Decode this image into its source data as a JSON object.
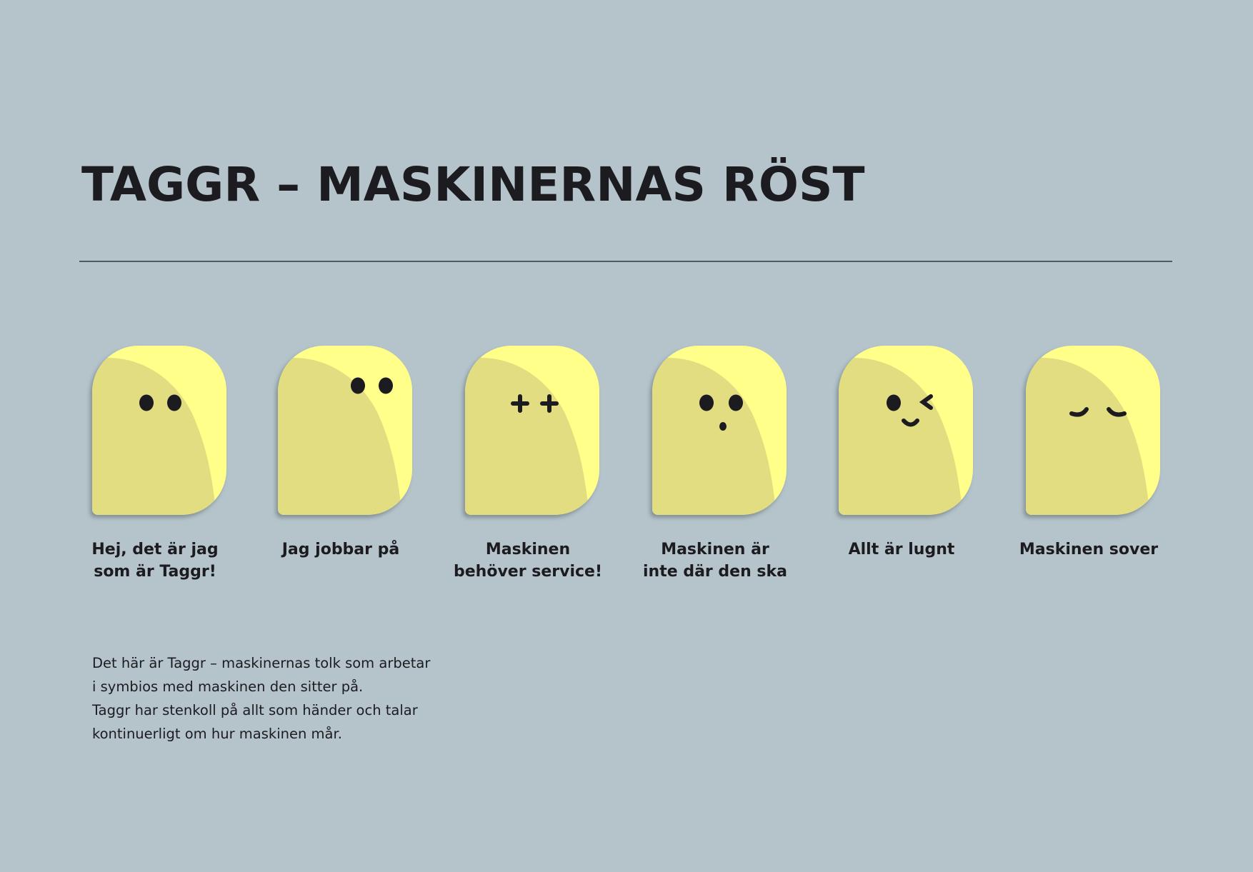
{
  "title": "TAGGR – MASKINERNAS RÖST",
  "colors": {
    "background": "#b5c4cb",
    "card_light": "#ffff8a",
    "card_shade": "#e2dd80",
    "face": "#1c1b20",
    "rule": "#505a60"
  },
  "moods": [
    {
      "face": "eyes-center",
      "lines": [
        "Hej, det är jag",
        "som är Taggr!"
      ]
    },
    {
      "face": "eyes-up-right",
      "lines": [
        "Jag jobbar på"
      ]
    },
    {
      "face": "eyes-plus",
      "lines": [
        "Maskinen",
        "behöver service!"
      ]
    },
    {
      "face": "eyes-surprised",
      "lines": [
        "Maskinen är",
        "inte där den ska"
      ]
    },
    {
      "face": "wink-smile",
      "lines": [
        "Allt är lugnt"
      ]
    },
    {
      "face": "eyes-closed",
      "lines": [
        "Maskinen sover"
      ]
    }
  ],
  "description": [
    "Det här är Taggr – maskinernas tolk som arbetar",
    "i symbios med maskinen den sitter på.",
    "Taggr har stenkoll på allt som händer och talar",
    "kontinuerligt om hur maskinen mår."
  ]
}
